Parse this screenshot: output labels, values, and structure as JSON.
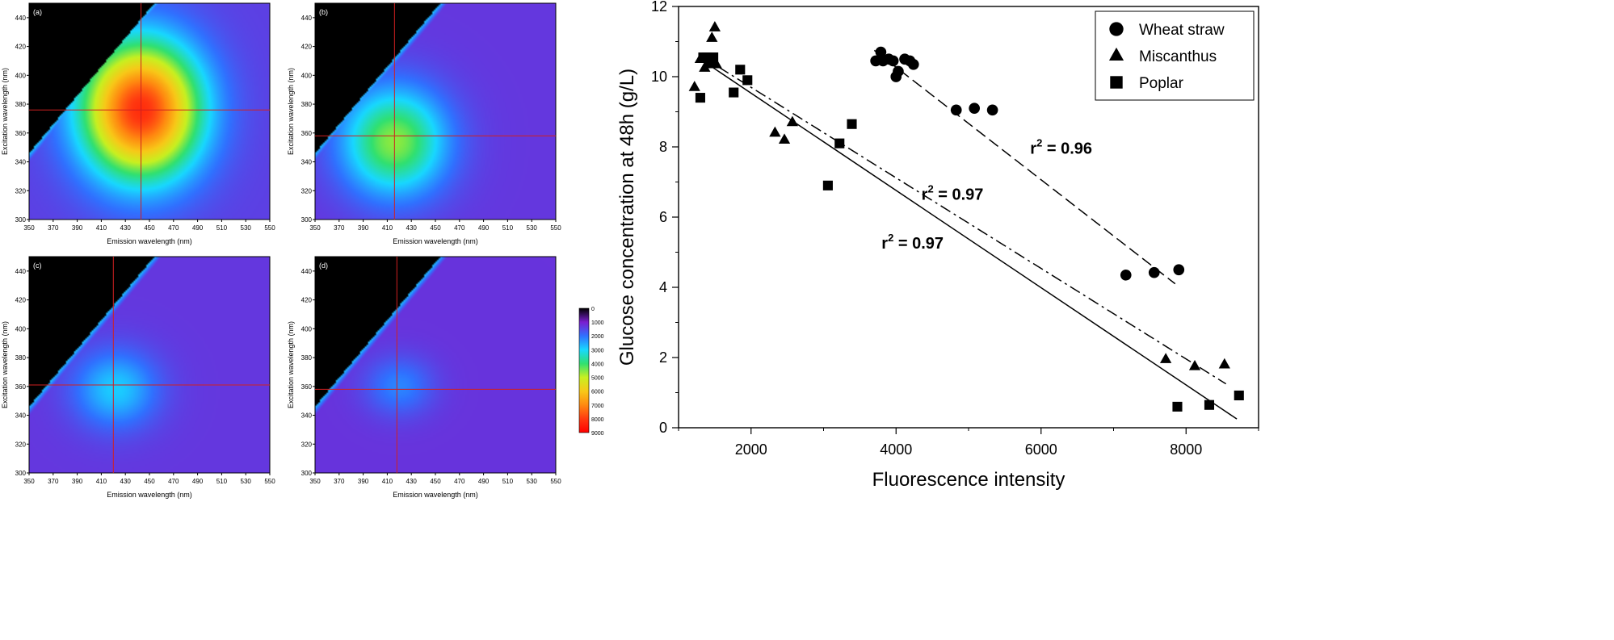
{
  "chart_data": [
    {
      "type": "heatmap",
      "panel_label": "(a)",
      "xlabel": "Emission wavelength (nm)",
      "ylabel": "Excitation wavelength (nm)",
      "xlim": [
        350,
        550
      ],
      "ylim": [
        300,
        450
      ],
      "x_ticks": [
        350,
        370,
        390,
        410,
        430,
        450,
        470,
        490,
        510,
        530,
        550
      ],
      "y_ticks": [
        300,
        320,
        340,
        360,
        380,
        400,
        420,
        440
      ],
      "crosshair": {
        "emission": 443,
        "excitation": 376
      },
      "peak": {
        "emission": 443,
        "excitation": 376,
        "intensity": 8200
      },
      "background_intensity": 1400,
      "spread": {
        "emission": 48,
        "excitation": 46
      }
    },
    {
      "type": "heatmap",
      "panel_label": "(b)",
      "xlabel": "Emission wavelength (nm)",
      "ylabel": "Excitation wavelength (nm)",
      "xlim": [
        350,
        550
      ],
      "ylim": [
        300,
        450
      ],
      "x_ticks": [
        350,
        370,
        390,
        410,
        430,
        450,
        470,
        490,
        510,
        530,
        550
      ],
      "y_ticks": [
        300,
        320,
        340,
        360,
        380,
        400,
        420,
        440
      ],
      "crosshair": {
        "emission": 416,
        "excitation": 358
      },
      "peak": {
        "emission": 416,
        "excitation": 354,
        "intensity": 4600
      },
      "background_intensity": 1300,
      "spread": {
        "emission": 42,
        "excitation": 36
      }
    },
    {
      "type": "heatmap",
      "panel_label": "(c)",
      "xlabel": "Emission wavelength (nm)",
      "ylabel": "Excitation wavelength (nm)",
      "xlim": [
        350,
        550
      ],
      "ylim": [
        300,
        450
      ],
      "x_ticks": [
        350,
        370,
        390,
        410,
        430,
        450,
        470,
        490,
        510,
        530,
        550
      ],
      "y_ticks": [
        300,
        320,
        340,
        360,
        380,
        400,
        420,
        440
      ],
      "crosshair": {
        "emission": 420,
        "excitation": 361
      },
      "peak": {
        "emission": 422,
        "excitation": 358,
        "intensity": 2900
      },
      "background_intensity": 1300,
      "spread": {
        "emission": 34,
        "excitation": 26
      }
    },
    {
      "type": "heatmap",
      "panel_label": "(d)",
      "xlabel": "Emission wavelength (nm)",
      "ylabel": "Excitation wavelength (nm)",
      "xlim": [
        350,
        550
      ],
      "ylim": [
        300,
        450
      ],
      "x_ticks": [
        350,
        370,
        390,
        410,
        430,
        450,
        470,
        490,
        510,
        530,
        550
      ],
      "y_ticks": [
        300,
        320,
        340,
        360,
        380,
        400,
        420,
        440
      ],
      "crosshair": {
        "emission": 418,
        "excitation": 358
      },
      "peak": {
        "emission": 420,
        "excitation": 360,
        "intensity": 2200
      },
      "background_intensity": 1250,
      "spread": {
        "emission": 28,
        "excitation": 20
      }
    },
    {
      "type": "colorbar",
      "ticks": [
        "0",
        "1000",
        "2000",
        "3000",
        "4000",
        "5000",
        "6000",
        "7000",
        "8000",
        "9000"
      ],
      "range": [
        0,
        9000
      ],
      "colors": [
        "#000000",
        "#7a1fd0",
        "#3070ff",
        "#18d8ff",
        "#30e070",
        "#c8f020",
        "#f8c818",
        "#ff8a10",
        "#ff3a10",
        "#ff0000"
      ]
    },
    {
      "type": "scatter",
      "xlabel": "Fluorescence intensity",
      "ylabel": "Glucose concentration at 48h (g/L)",
      "xlim": [
        1000,
        9000
      ],
      "ylim": [
        0,
        12
      ],
      "x_ticks": [
        2000,
        4000,
        6000,
        8000
      ],
      "y_ticks": [
        0,
        2,
        4,
        6,
        8,
        10,
        12
      ],
      "legend_position": "top-right",
      "series": [
        {
          "name": "Wheat straw",
          "marker": "circle",
          "line_style": "dashed",
          "fit": [
            [
              3700,
              10.75
            ],
            [
              7850,
              4.1
            ]
          ],
          "r2": "0.96",
          "points": [
            [
              3720,
              10.45
            ],
            [
              3790,
              10.7
            ],
            [
              3820,
              10.45
            ],
            [
              3900,
              10.5
            ],
            [
              3960,
              10.45
            ],
            [
              4000,
              10.0
            ],
            [
              4030,
              10.15
            ],
            [
              4120,
              10.5
            ],
            [
              4190,
              10.45
            ],
            [
              4240,
              10.35
            ],
            [
              4830,
              9.05
            ],
            [
              5080,
              9.1
            ],
            [
              5330,
              9.05
            ],
            [
              7170,
              4.35
            ],
            [
              7560,
              4.42
            ],
            [
              7900,
              4.5
            ]
          ]
        },
        {
          "name": "Miscanthus",
          "marker": "triangle",
          "line_style": "dashdot",
          "fit": [
            [
              1300,
              10.6
            ],
            [
              8550,
              1.25
            ]
          ],
          "r2": "0.97",
          "points": [
            [
              1220,
              9.7
            ],
            [
              1300,
              10.5
            ],
            [
              1360,
              10.25
            ],
            [
              1410,
              10.35
            ],
            [
              1460,
              11.1
            ],
            [
              1500,
              11.4
            ],
            [
              1520,
              10.35
            ],
            [
              2330,
              8.4
            ],
            [
              2460,
              8.2
            ],
            [
              2570,
              8.7
            ],
            [
              7720,
              1.95
            ],
            [
              8120,
              1.75
            ],
            [
              8530,
              1.8
            ]
          ]
        },
        {
          "name": "Poplar",
          "marker": "square",
          "line_style": "solid",
          "fit": [
            [
              1300,
              10.5
            ],
            [
              8700,
              0.25
            ]
          ],
          "r2": "0.97",
          "points": [
            [
              1300,
              9.4
            ],
            [
              1340,
              10.55
            ],
            [
              1390,
              10.55
            ],
            [
              1430,
              10.45
            ],
            [
              1480,
              10.55
            ],
            [
              1850,
              10.2
            ],
            [
              1950,
              9.9
            ],
            [
              1760,
              9.55
            ],
            [
              3390,
              8.65
            ],
            [
              3220,
              8.1
            ],
            [
              3060,
              6.9
            ],
            [
              7880,
              0.6
            ],
            [
              8320,
              0.65
            ],
            [
              8730,
              0.92
            ]
          ]
        }
      ],
      "annotations": [
        {
          "series": "Wheat straw",
          "text": "r",
          "sup": "2",
          "rest": " = 0.96",
          "x": 5850,
          "y": 7.8
        },
        {
          "series": "Miscanthus",
          "text": "r",
          "sup": "2",
          "rest": " = 0.97",
          "x": 4350,
          "y": 6.5
        },
        {
          "series": "Poplar",
          "text": "r",
          "sup": "2",
          "rest": " = 0.97",
          "x": 3800,
          "y": 5.1
        }
      ]
    }
  ]
}
